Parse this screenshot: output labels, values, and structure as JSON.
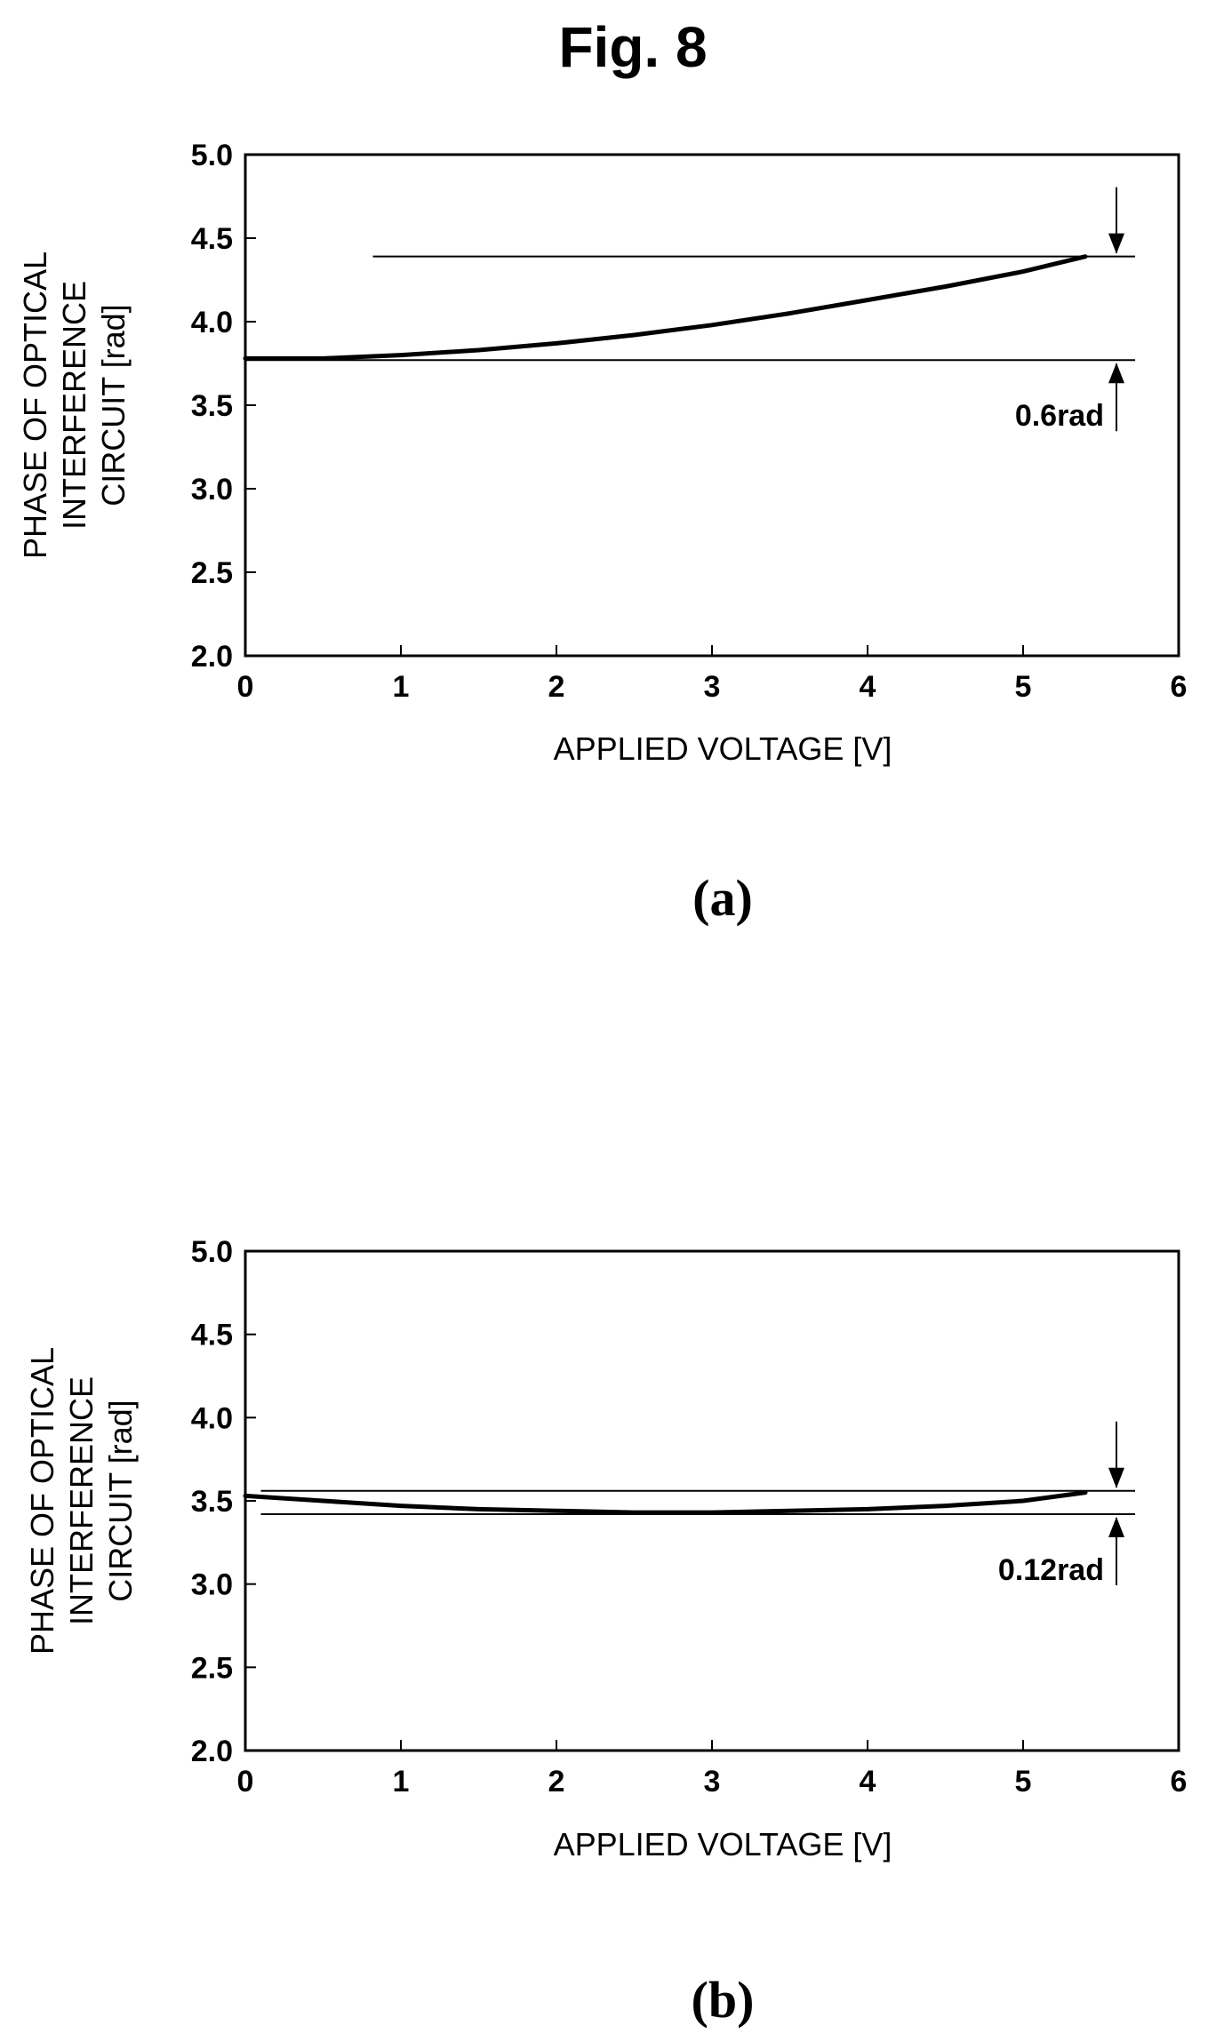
{
  "figure": {
    "title": "Fig. 8"
  },
  "chart_data": [
    {
      "type": "line",
      "panel_label": "(a)",
      "title": "",
      "xlabel": "APPLIED VOLTAGE [V]",
      "ylabel_lines": [
        "PHASE OF OPTICAL",
        "INTERFERENCE",
        "CIRCUIT [rad]"
      ],
      "xlim": [
        0,
        6
      ],
      "ylim": [
        2.0,
        5.0
      ],
      "x_ticks": [
        0,
        1,
        2,
        3,
        4,
        5,
        6
      ],
      "y_ticks": [
        2.0,
        2.5,
        3.0,
        3.5,
        4.0,
        4.5,
        5.0
      ],
      "x_tick_labels": [
        "0",
        "1",
        "2",
        "3",
        "4",
        "5",
        "6"
      ],
      "y_tick_labels": [
        "2.0",
        "2.5",
        "3.0",
        "3.5",
        "4.0",
        "4.5",
        "5.0"
      ],
      "grid": false,
      "series": [
        {
          "x": [
            0,
            0.5,
            1,
            1.5,
            2,
            2.5,
            3,
            3.5,
            4,
            4.5,
            5,
            5.4
          ],
          "y": [
            3.78,
            3.78,
            3.8,
            3.83,
            3.87,
            3.92,
            3.98,
            4.05,
            4.13,
            4.21,
            4.3,
            4.39
          ]
        }
      ],
      "reference_lines": [
        {
          "y": 4.39,
          "x_from": 0.82,
          "x_to": 5.72
        },
        {
          "y": 3.77,
          "x_from": 0,
          "x_to": 5.72
        }
      ],
      "annotation": {
        "text": "0.6rad",
        "arrow_x": 5.6
      }
    },
    {
      "type": "line",
      "panel_label": "(b)",
      "title": "",
      "xlabel": "APPLIED VOLTAGE [V]",
      "ylabel_lines": [
        "PHASE OF OPTICAL",
        "INTERFERENCE",
        "CIRCUIT [rad]"
      ],
      "xlim": [
        0,
        6
      ],
      "ylim": [
        2.0,
        5.0
      ],
      "x_ticks": [
        0,
        1,
        2,
        3,
        4,
        5,
        6
      ],
      "y_ticks": [
        2.0,
        2.5,
        3.0,
        3.5,
        4.0,
        4.5,
        5.0
      ],
      "x_tick_labels": [
        "0",
        "1",
        "2",
        "3",
        "4",
        "5",
        "6"
      ],
      "y_tick_labels": [
        "2.0",
        "2.5",
        "3.0",
        "3.5",
        "4.0",
        "4.5",
        "5.0"
      ],
      "grid": false,
      "series": [
        {
          "x": [
            0,
            0.5,
            1,
            1.5,
            2,
            2.5,
            3,
            3.5,
            4,
            4.5,
            5,
            5.4
          ],
          "y": [
            3.53,
            3.5,
            3.47,
            3.45,
            3.44,
            3.43,
            3.43,
            3.44,
            3.45,
            3.47,
            3.5,
            3.55
          ]
        }
      ],
      "reference_lines": [
        {
          "y": 3.56,
          "x_from": 0.1,
          "x_to": 5.72
        },
        {
          "y": 3.42,
          "x_from": 0.1,
          "x_to": 5.72
        }
      ],
      "annotation": {
        "text": "0.12rad",
        "arrow_x": 5.6
      }
    }
  ]
}
